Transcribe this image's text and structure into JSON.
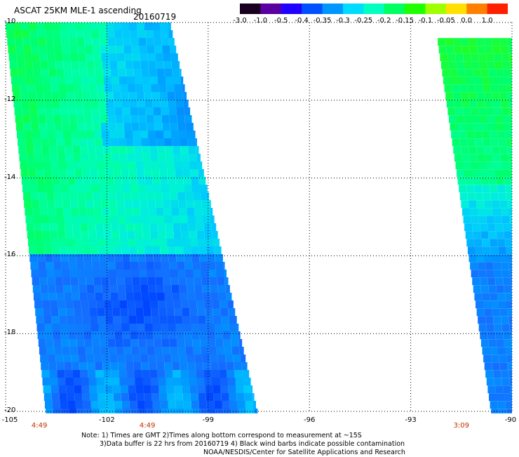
{
  "header": {
    "title": "ASCAT 25KM MLE-1 ascending",
    "date": "20160719"
  },
  "colorbar": {
    "ticks": [
      "-3.0",
      "-1.0",
      "-0.5",
      "-0.4",
      "-0.35",
      "-0.3",
      "-0.25",
      "-0.2",
      "-0.15",
      "-0.1",
      "-0.05",
      "0.0",
      "1.0"
    ],
    "colors": [
      "#1a0020",
      "#5a00a0",
      "#2000ff",
      "#0050ff",
      "#0096ff",
      "#00dcff",
      "#00ffc0",
      "#00ff60",
      "#20ff00",
      "#a0ff00",
      "#ffe000",
      "#ff8000",
      "#ff2000"
    ]
  },
  "axes": {
    "y_labels": [
      "-10",
      "-12",
      "-14",
      "-16",
      "-18",
      "-20"
    ],
    "x_labels": [
      "-105",
      "-102",
      "-99",
      "-96",
      "-93",
      "-90"
    ],
    "time_labels": [
      {
        "text": "4:49",
        "lon": -104.0
      },
      {
        "text": "4:49",
        "lon": -100.8
      },
      {
        "text": "3:09",
        "lon": -91.5
      }
    ]
  },
  "map": {
    "lon_range": [
      -105,
      -90
    ],
    "lat_range": [
      -10,
      -20
    ],
    "swaths": [
      {
        "name": "west-swath",
        "lat_top": -10,
        "lat_bottom": -20.05,
        "lon_left_top": -105,
        "lon_left_bottom": -103.8,
        "lon_right_top": -100.1,
        "lon_right_bottom": -97.5
      },
      {
        "name": "east-swath",
        "lat_top": -10.4,
        "lat_bottom": -20.05,
        "lon_left_top": -92.2,
        "lon_left_bottom": -90.6,
        "lon_right_top": -90,
        "lon_right_bottom": -90
      }
    ]
  },
  "notes": {
    "line1": "Note: 1) Times are GMT 2)Times along bottom correspond to measurement at ~15S",
    "line2": "3)Data buffer is 22 hrs from 20160719 4) Black wind barbs indicate possible contamination",
    "line3": "NOAA/NESDIS/Center for Satellite Applications and Research"
  }
}
